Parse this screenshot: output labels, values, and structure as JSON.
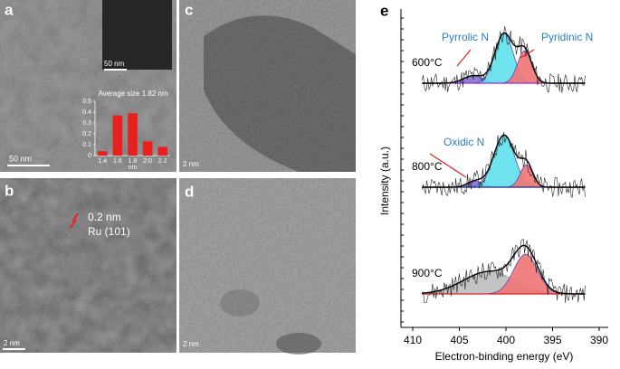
{
  "panels": {
    "a": {
      "label": "a",
      "scale_bar": "50 nm",
      "inset_scale_bar": "50 nm"
    },
    "b": {
      "label": "b",
      "scale_bar": "2 nm",
      "spacing": "0.2 nm",
      "plane": "Ru (101)"
    },
    "c": {
      "label": "c",
      "scale_bar": "2 nm"
    },
    "d": {
      "label": "d",
      "scale_bar": "2 nm"
    },
    "e": {
      "label": "e"
    }
  },
  "chart_data": [
    {
      "type": "bar",
      "title": "Average size 1.82 nm",
      "x_label": "nm",
      "categories": [
        "1.4",
        "1.6",
        "1.8",
        "2.0",
        "2.2"
      ],
      "values": [
        0.04,
        0.37,
        0.39,
        0.13,
        0.08
      ],
      "color": "#e8201e",
      "ylim": [
        0,
        0.5
      ],
      "yticks": [
        0,
        0.1,
        0.2,
        0.3,
        0.4,
        0.5
      ]
    },
    {
      "type": "xps",
      "x_label": "Electron-binding energy (eV)",
      "y_label": "Intensity (a.u.)",
      "xlim": [
        410,
        390
      ],
      "xticks": [
        410,
        405,
        400,
        395,
        390
      ],
      "annotations": [
        "Pyrrolic N",
        "Pyridinic N",
        "Oxidic N"
      ],
      "spectra": [
        {
          "label": "600°C",
          "baseline_color": "#9b30d0",
          "components": [
            {
              "center": 403.5,
              "fwhm": 2.5,
              "height": 0.15,
              "color": "#8a6fd0"
            },
            {
              "center": 400.2,
              "fwhm": 2.3,
              "height": 1.0,
              "color": "#5ee0ec"
            },
            {
              "center": 398.0,
              "fwhm": 1.8,
              "height": 0.65,
              "color": "#f07474"
            }
          ]
        },
        {
          "label": "800°C",
          "baseline_color": "#1c2a7a",
          "components": [
            {
              "center": 403.3,
              "fwhm": 2.0,
              "height": 0.12,
              "color": "#8a6fd0"
            },
            {
              "center": 400.2,
              "fwhm": 2.6,
              "height": 1.05,
              "color": "#5ee0ec"
            },
            {
              "center": 397.8,
              "fwhm": 1.6,
              "height": 0.45,
              "color": "#f07474"
            }
          ]
        },
        {
          "label": "900°C",
          "baseline_color": "#e02020",
          "components": [
            {
              "center": 401.8,
              "fwhm": 6.5,
              "height": 0.45,
              "color": "#bdbdbd"
            },
            {
              "center": 397.9,
              "fwhm": 3.0,
              "height": 0.8,
              "color": "#f07474"
            }
          ]
        }
      ]
    }
  ]
}
